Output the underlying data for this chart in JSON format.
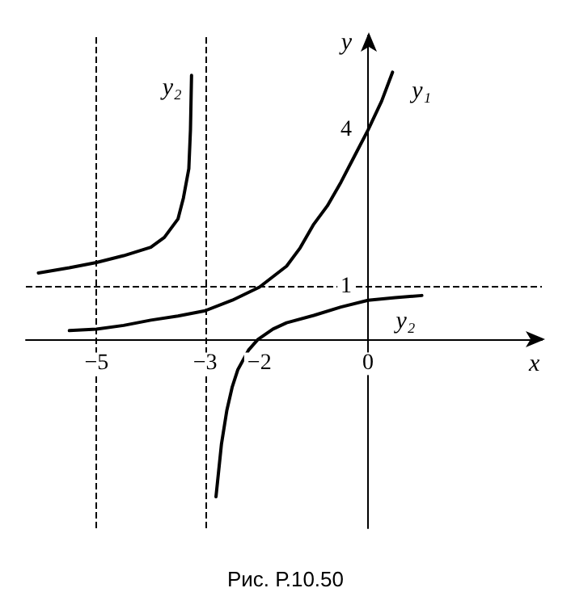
{
  "chart_data": {
    "type": "line",
    "xlabel": "x",
    "ylabel": "y",
    "xlim": [
      -6.3,
      3.2
    ],
    "ylim": [
      -3.6,
      5.8
    ],
    "xticks": [
      -5,
      -3,
      -2,
      0
    ],
    "yticks": [
      1,
      4
    ],
    "grid": false,
    "legend": false,
    "marker": "none",
    "line_style": "solid",
    "series": [
      {
        "name": "y₁",
        "color": "#000000",
        "x": [
          -5.5,
          -5,
          -4.5,
          -4,
          -3.5,
          -3,
          -2.5,
          -2,
          -1.75,
          -1.5,
          -1.25,
          -1,
          -0.75,
          -0.5,
          -0.25,
          0,
          0.25,
          0.45
        ],
        "values": [
          0.17,
          0.2,
          0.27,
          0.37,
          0.45,
          0.55,
          0.75,
          1.0,
          1.2,
          1.4,
          1.75,
          2.2,
          2.55,
          3.0,
          3.5,
          4,
          4.55,
          5.1
        ]
      },
      {
        "name": "y₂",
        "color": "#000000",
        "x": [
          -6.07,
          -5.5,
          -5,
          -4.5,
          -4,
          -3.75,
          -3.5,
          -3.4,
          -3.3,
          -3.27,
          -3.25
        ],
        "values": [
          1.27,
          1.37,
          1.47,
          1.6,
          1.76,
          1.95,
          2.3,
          2.7,
          3.26,
          4.0,
          5.04
        ]
      },
      {
        "name": "y₂",
        "color": "#000000",
        "x": [
          -2.8,
          -2.7,
          -2.6,
          -2.5,
          -2.4,
          -2.2,
          -2.03,
          -1.75,
          -1.5,
          -1,
          -0.5,
          0,
          0.5,
          0.99
        ],
        "values": [
          -3.0,
          -2.0,
          -1.35,
          -0.9,
          -0.58,
          -0.2,
          0,
          0.2,
          0.32,
          0.46,
          0.62,
          0.75,
          0.8,
          0.84
        ]
      }
    ],
    "ref_lines": [
      {
        "axis": "x",
        "value": -5,
        "line_style": "dashed",
        "color": "#000000"
      },
      {
        "axis": "x",
        "value": -3,
        "line_style": "dashed",
        "color": "#000000"
      },
      {
        "axis": "y",
        "value": 1,
        "line_style": "dashed",
        "color": "#000000"
      }
    ],
    "annotations": [
      "Рис. Р.10.50"
    ]
  }
}
